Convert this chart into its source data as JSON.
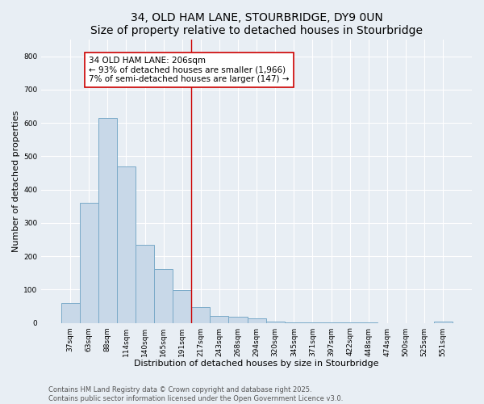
{
  "title": "34, OLD HAM LANE, STOURBRIDGE, DY9 0UN",
  "subtitle": "Size of property relative to detached houses in Stourbridge",
  "xlabel": "Distribution of detached houses by size in Stourbridge",
  "ylabel": "Number of detached properties",
  "categories": [
    "37sqm",
    "63sqm",
    "88sqm",
    "114sqm",
    "140sqm",
    "165sqm",
    "191sqm",
    "217sqm",
    "243sqm",
    "268sqm",
    "294sqm",
    "320sqm",
    "345sqm",
    "371sqm",
    "397sqm",
    "422sqm",
    "448sqm",
    "474sqm",
    "500sqm",
    "525sqm",
    "551sqm"
  ],
  "values": [
    60,
    360,
    615,
    470,
    235,
    162,
    99,
    47,
    21,
    19,
    14,
    4,
    2,
    2,
    1,
    1,
    1,
    0,
    0,
    0,
    5
  ],
  "bar_color": "#c8d8e8",
  "bar_edge_color": "#7aaac8",
  "vline_x_idx": 7,
  "vline_color": "#cc0000",
  "annotation_text": "34 OLD HAM LANE: 206sqm\n← 93% of detached houses are smaller (1,966)\n7% of semi-detached houses are larger (147) →",
  "annotation_box_color": "#ffffff",
  "annotation_box_edge": "#cc0000",
  "ylim": [
    0,
    850
  ],
  "yticks": [
    0,
    100,
    200,
    300,
    400,
    500,
    600,
    700,
    800
  ],
  "footer_line1": "Contains HM Land Registry data © Crown copyright and database right 2025.",
  "footer_line2": "Contains public sector information licensed under the Open Government Licence v3.0.",
  "bg_color": "#e8eef4",
  "plot_bg_color": "#e8eef4",
  "title_fontsize": 10,
  "axis_label_fontsize": 8,
  "tick_fontsize": 6.5,
  "annotation_fontsize": 7.5,
  "footer_fontsize": 6
}
